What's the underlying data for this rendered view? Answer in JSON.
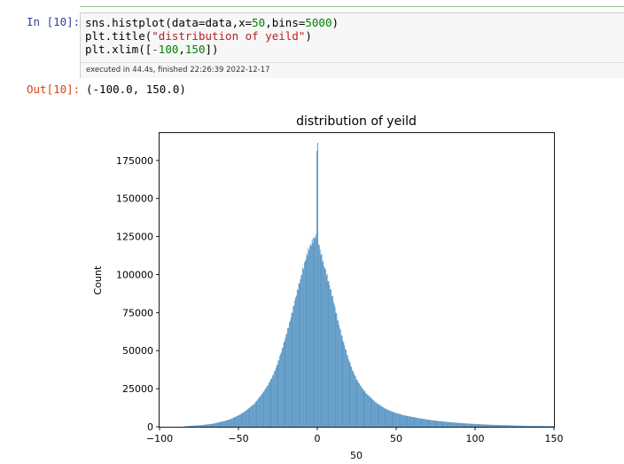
{
  "cell": {
    "in_prompt": "In [10]:",
    "out_prompt": "Out[10]:",
    "code_lines": [
      [
        {
          "t": "sns.histplot(data=data,x=",
          "c": ""
        },
        {
          "t": "50",
          "c": "num"
        },
        {
          "t": ",bins=",
          "c": ""
        },
        {
          "t": "5000",
          "c": "num"
        },
        {
          "t": ")",
          "c": ""
        }
      ],
      [
        {
          "t": "plt.title(",
          "c": ""
        },
        {
          "t": "\"distribution of yeild\"",
          "c": "str"
        },
        {
          "t": ")",
          "c": ""
        }
      ],
      [
        {
          "t": "plt.xlim([",
          "c": ""
        },
        {
          "t": "-100",
          "c": "num"
        },
        {
          "t": ",",
          "c": ""
        },
        {
          "t": "150",
          "c": "num"
        },
        {
          "t": "])",
          "c": ""
        }
      ]
    ],
    "execution_info": "executed in 44.4s, finished 22:26:39 2022-12-17",
    "output_text": "(-100.0, 150.0)"
  },
  "chart_data": {
    "type": "bar",
    "title": "distribution of yeild",
    "xlabel": "50",
    "ylabel": "Count",
    "xlim": [
      -100,
      150
    ],
    "ylim": [
      0,
      193000
    ],
    "xticks": [
      -100,
      -50,
      0,
      50,
      100,
      150
    ],
    "xtick_labels": [
      "−100",
      "−50",
      "0",
      "50",
      "100",
      "150"
    ],
    "yticks": [
      0,
      25000,
      50000,
      75000,
      100000,
      125000,
      150000,
      175000
    ],
    "bar_color": "#5896c4",
    "bin_centers": [
      -82,
      -78,
      -74,
      -70,
      -66,
      -62,
      -58,
      -55,
      -52,
      -49,
      -46,
      -43,
      -40,
      -37,
      -34,
      -31,
      -28,
      -25,
      -22,
      -19,
      -16,
      -13,
      -10,
      -8,
      -6,
      -4,
      -2,
      -1,
      0,
      1,
      2,
      4,
      6,
      8,
      10,
      13,
      16,
      19,
      22,
      25,
      28,
      31,
      34,
      37,
      40,
      43,
      46,
      50,
      55,
      60,
      65,
      70,
      75,
      80,
      85,
      90,
      95,
      100,
      110,
      120,
      130,
      140
    ],
    "counts": [
      500,
      800,
      1000,
      1500,
      2000,
      3000,
      4000,
      5000,
      6500,
      8000,
      10000,
      12500,
      15000,
      19000,
      23000,
      28000,
      34000,
      42000,
      52000,
      63000,
      75000,
      88000,
      100000,
      108000,
      115000,
      120000,
      124000,
      125000,
      184000,
      120000,
      115000,
      107000,
      100000,
      92000,
      84000,
      70000,
      58000,
      47000,
      38000,
      31000,
      26000,
      22000,
      19000,
      16000,
      14000,
      12000,
      10500,
      9000,
      7500,
      6500,
      5500,
      4700,
      4000,
      3400,
      2900,
      2500,
      2100,
      1800,
      1300,
      1000,
      700,
      500
    ]
  }
}
